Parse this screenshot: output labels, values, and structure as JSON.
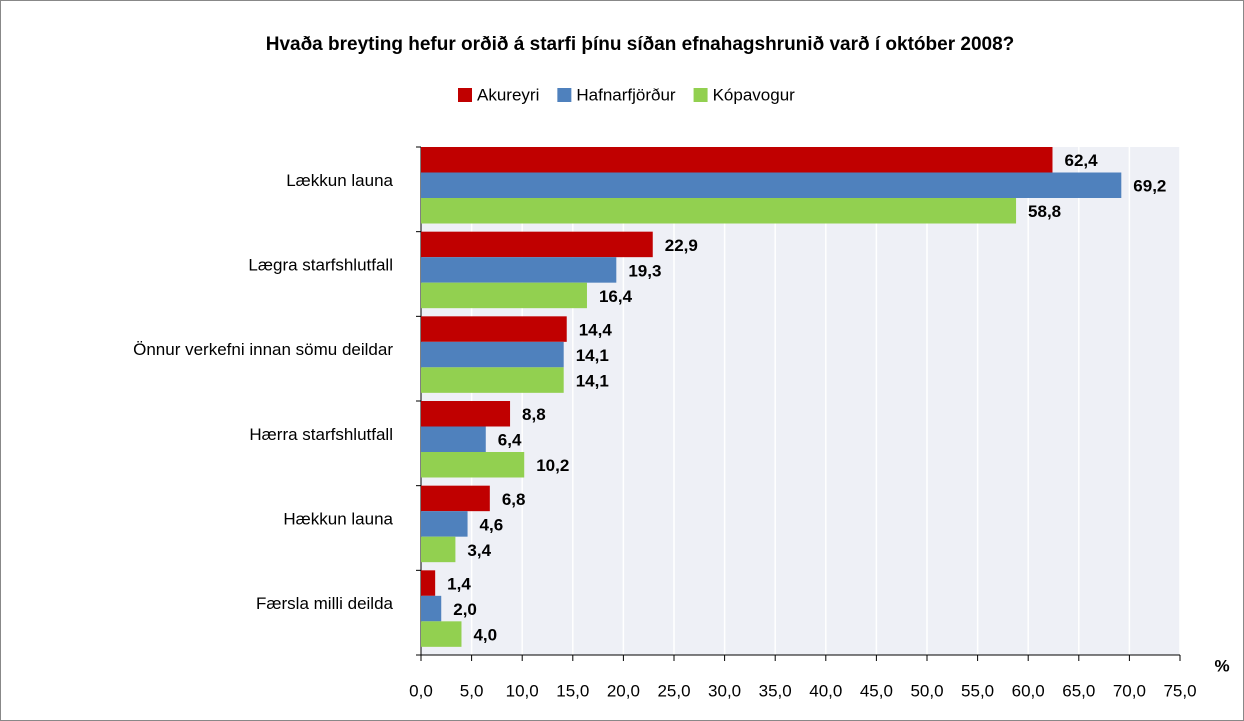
{
  "chart_data": {
    "type": "hbar",
    "title": "Hvaða breyting hefur orðið á starfi þínu síðan efnahagshrunið varð í október 2008?",
    "x_label": "%",
    "categories": [
      "Lækkun launa",
      "Lægra starfshlutfall",
      "Önnur verkefni innan sömu deildar",
      "Hærra starfshlutfall",
      "Hækkun launa",
      "Færsla milli deilda"
    ],
    "series": [
      {
        "name": "Akureyri",
        "color": "#c00000",
        "values": [
          62.4,
          22.9,
          14.4,
          8.8,
          6.8,
          1.4
        ],
        "value_labels": [
          "62,4",
          "22,9",
          "14,4",
          "8,8",
          "6,8",
          "1,4"
        ]
      },
      {
        "name": "Hafnarfjörður",
        "color": "#4f81bd",
        "values": [
          69.2,
          19.3,
          14.1,
          6.4,
          4.6,
          2.0
        ],
        "value_labels": [
          "69,2",
          "19,3",
          "14,1",
          "6,4",
          "4,6",
          "2,0"
        ]
      },
      {
        "name": "Kópavogur",
        "color": "#92d050",
        "values": [
          58.8,
          16.4,
          14.1,
          10.2,
          3.4,
          4.0
        ],
        "value_labels": [
          "58,8",
          "16,4",
          "14,1",
          "10,2",
          "3,4",
          "4,0"
        ]
      }
    ],
    "xlim": [
      0,
      75
    ],
    "xticks": [
      {
        "value": 0,
        "label": "0,0"
      },
      {
        "value": 5,
        "label": "5,0"
      },
      {
        "value": 10,
        "label": "10,0"
      },
      {
        "value": 15,
        "label": "15,0"
      },
      {
        "value": 20,
        "label": "20,0"
      },
      {
        "value": 25,
        "label": "25,0"
      },
      {
        "value": 30,
        "label": "30,0"
      },
      {
        "value": 35,
        "label": "35,0"
      },
      {
        "value": 40,
        "label": "40,0"
      },
      {
        "value": 45,
        "label": "45,0"
      },
      {
        "value": 50,
        "label": "50,0"
      },
      {
        "value": 55,
        "label": "55,0"
      },
      {
        "value": 60,
        "label": "60,0"
      },
      {
        "value": 65,
        "label": "65,0"
      },
      {
        "value": 70,
        "label": "70,0"
      },
      {
        "value": 75,
        "label": "75,0"
      }
    ],
    "grid": true,
    "legend": "top"
  }
}
